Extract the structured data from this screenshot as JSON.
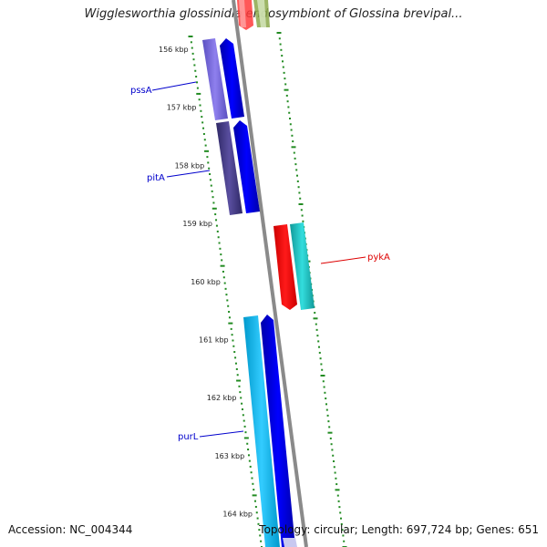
{
  "title": "Wigglesworthia glossinidia endosymbiont of Glossina brevipal...",
  "footer": {
    "accession": "Accession: NC_004344",
    "summary": "Topology: circular; Length: 697,724 bp; Genes: 651"
  },
  "axis": {
    "unit": "kbp",
    "ticks": [
      156,
      157,
      158,
      159,
      160,
      161,
      162,
      163,
      164
    ],
    "tick_labels": [
      "156 kbp",
      "157 kbp",
      "158 kbp",
      "159 kbp",
      "160 kbp",
      "161 kbp",
      "162 kbp",
      "163 kbp",
      "164 kbp"
    ]
  },
  "gene_labels": [
    {
      "name": "pssA",
      "color": "#0000cc"
    },
    {
      "name": "pitA",
      "color": "#0000cc"
    },
    {
      "name": "pykA",
      "color": "#dd0000"
    },
    {
      "name": "purL",
      "color": "#0000cc"
    }
  ],
  "colors": {
    "backbone": "#888888",
    "tick_mark": "#228b22",
    "cds_blue": "#0000ee",
    "cds_red": "#ff0000",
    "cds_teal": "#22cccc",
    "cds_light_blue": "#22bbee",
    "cog_purple": "#7b68d8",
    "cog_dark_purple": "#473c8b"
  }
}
